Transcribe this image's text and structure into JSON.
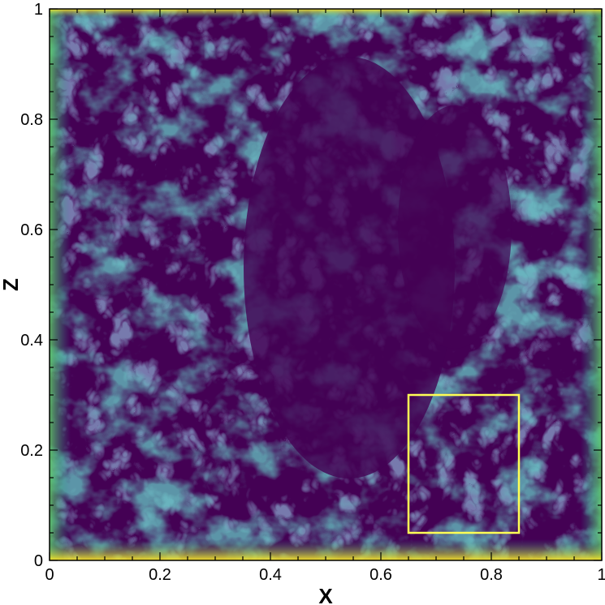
{
  "chart_data": {
    "type": "heatmap",
    "title": "",
    "xlabel": "X",
    "ylabel": "Z",
    "xlim": [
      0,
      1
    ],
    "ylim": [
      0,
      1
    ],
    "x_ticks": [
      "0",
      "0.2",
      "0.4",
      "0.6",
      "0.8",
      "1"
    ],
    "y_ticks": [
      "0",
      "0.2",
      "0.4",
      "0.6",
      "0.8",
      "1"
    ],
    "x_tick_values": [
      0,
      0.2,
      0.4,
      0.6,
      0.8,
      1
    ],
    "y_tick_values": [
      0,
      0.2,
      0.4,
      0.6,
      0.8,
      1
    ],
    "colormap": "viridis",
    "colors": {
      "low": "#440154",
      "mid_low": "#3b528b",
      "mid": "#21918c",
      "mid_high": "#5ec962",
      "high": "#fde725",
      "highlight_box": "#ffff55"
    },
    "annotations": [
      {
        "type": "rectangle",
        "x0": 0.65,
        "x1": 0.85,
        "z0": 0.05,
        "z1": 0.3
      }
    ],
    "grid": false,
    "legend": "none"
  }
}
